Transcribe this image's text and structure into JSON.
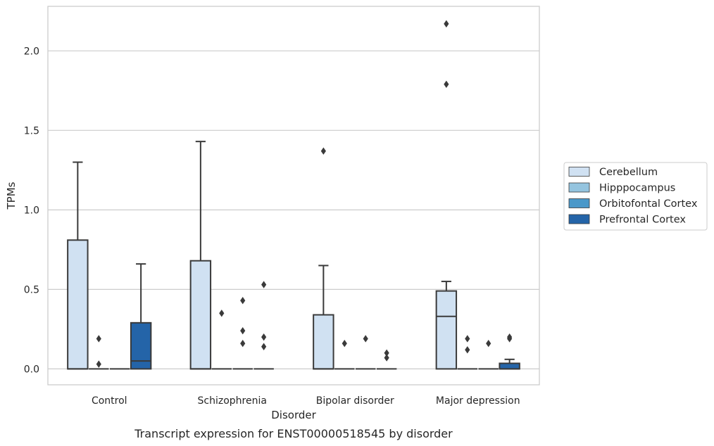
{
  "chart_data": {
    "type": "box",
    "xlabel": "Disorder",
    "ylabel": "TPMs",
    "caption": "Transcript expression for ENST00000518545 by disorder",
    "categories": [
      "Control",
      "Schizophrenia",
      "Bipolar disorder",
      "Major depression"
    ],
    "ylim": [
      -0.1,
      2.28
    ],
    "yticks": [
      0.0,
      0.5,
      1.0,
      1.5,
      2.0
    ],
    "ytick_labels": [
      "0.0",
      "0.5",
      "1.0",
      "1.5",
      "2.0"
    ],
    "grid": "horizontal",
    "legend_position": "right",
    "series": [
      {
        "name": "Cerebellum",
        "color": "#d0e1f2",
        "boxes": [
          {
            "min": 0,
            "q1": 0,
            "median": 0,
            "q3": 0.81,
            "max": 1.3,
            "outliers": []
          },
          {
            "min": 0,
            "q1": 0,
            "median": 0,
            "q3": 0.68,
            "max": 1.43,
            "outliers": []
          },
          {
            "min": 0,
            "q1": 0,
            "median": 0,
            "q3": 0.34,
            "max": 0.65,
            "outliers": [
              1.37
            ]
          },
          {
            "min": 0,
            "q1": 0,
            "median": 0.33,
            "q3": 0.49,
            "max": 0.55,
            "outliers": [
              1.79,
              2.17
            ]
          }
        ]
      },
      {
        "name": "Hipppocampus",
        "color": "#94c4df",
        "boxes": [
          {
            "min": 0,
            "q1": 0,
            "median": 0,
            "q3": 0,
            "max": 0,
            "outliers": [
              0.19,
              0.03
            ]
          },
          {
            "min": 0,
            "q1": 0,
            "median": 0,
            "q3": 0,
            "max": 0,
            "outliers": [
              0.35
            ]
          },
          {
            "min": 0,
            "q1": 0,
            "median": 0,
            "q3": 0,
            "max": 0,
            "outliers": [
              0.16
            ]
          },
          {
            "min": 0,
            "q1": 0,
            "median": 0,
            "q3": 0,
            "max": 0,
            "outliers": [
              0.19,
              0.12
            ]
          }
        ]
      },
      {
        "name": "Orbitofontal Cortex",
        "color": "#4a98c9",
        "boxes": [
          {
            "min": 0,
            "q1": 0,
            "median": 0,
            "q3": 0,
            "max": 0,
            "outliers": []
          },
          {
            "min": 0,
            "q1": 0,
            "median": 0,
            "q3": 0,
            "max": 0,
            "outliers": [
              0.43,
              0.24,
              0.16
            ]
          },
          {
            "min": 0,
            "q1": 0,
            "median": 0,
            "q3": 0,
            "max": 0,
            "outliers": [
              0.19
            ]
          },
          {
            "min": 0,
            "q1": 0,
            "median": 0,
            "q3": 0,
            "max": 0,
            "outliers": [
              0.16
            ]
          }
        ]
      },
      {
        "name": "Prefrontal Cortex",
        "color": "#2464a8",
        "boxes": [
          {
            "min": 0,
            "q1": 0,
            "median": 0.05,
            "q3": 0.29,
            "max": 0.66,
            "outliers": []
          },
          {
            "min": 0,
            "q1": 0,
            "median": 0,
            "q3": 0,
            "max": 0,
            "outliers": [
              0.53,
              0.2,
              0.14
            ]
          },
          {
            "min": 0,
            "q1": 0,
            "median": 0,
            "q3": 0,
            "max": 0,
            "outliers": [
              0.1,
              0.07
            ]
          },
          {
            "min": 0,
            "q1": 0,
            "median": 0,
            "q3": 0.035,
            "max": 0.06,
            "outliers": [
              0.2,
              0.19
            ]
          }
        ]
      }
    ]
  }
}
